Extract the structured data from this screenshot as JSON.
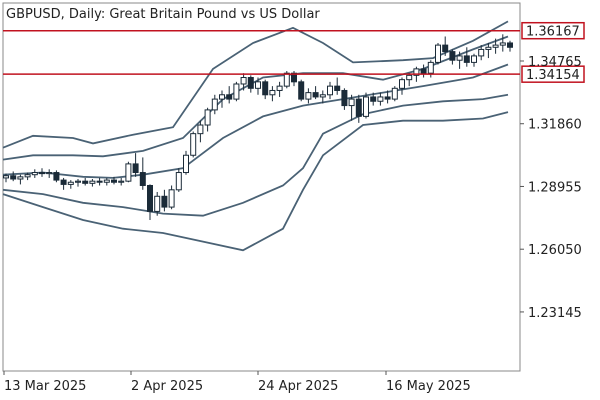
{
  "chart_data": {
    "type": "candlestick",
    "title": "GBPUSD, Daily:  Great Britain Pound vs US Dollar",
    "y_range": [
      1.2041,
      1.3745
    ],
    "y_ticks": [
      1.3186,
      1.28955,
      1.2605,
      1.23145,
      1.34765
    ],
    "y_tick_labels": [
      "1.31860",
      "1.28955",
      "1.26050",
      "1.23145",
      "1.34765"
    ],
    "x_tick_labels": [
      "13 Mar 2025",
      "2 Apr 2025",
      "24 Apr 2025",
      "16 May 2025"
    ],
    "grid": false,
    "horizontal_lines": [
      {
        "label": "1.36167",
        "value": 1.36167,
        "color": "#c1121f"
      },
      {
        "label": "1.34154",
        "value": 1.34154,
        "color": "#c1121f"
      }
    ],
    "candles_ohlc": [
      [
        1.2935,
        1.2955,
        1.2915,
        1.2945
      ],
      [
        1.2945,
        1.2965,
        1.292,
        1.293
      ],
      [
        1.293,
        1.295,
        1.2905,
        1.294
      ],
      [
        1.294,
        1.296,
        1.2925,
        1.295
      ],
      [
        1.295,
        1.2975,
        1.2935,
        1.296
      ],
      [
        1.296,
        1.298,
        1.294,
        1.2955
      ],
      [
        1.2955,
        1.2975,
        1.2935,
        1.296
      ],
      [
        1.296,
        1.297,
        1.2915,
        1.2925
      ],
      [
        1.2925,
        1.2935,
        1.288,
        1.2905
      ],
      [
        1.2905,
        1.2925,
        1.2885,
        1.2915
      ],
      [
        1.2915,
        1.293,
        1.2895,
        1.292
      ],
      [
        1.292,
        1.2935,
        1.29,
        1.291
      ],
      [
        1.291,
        1.293,
        1.2895,
        1.292
      ],
      [
        1.292,
        1.2935,
        1.29,
        1.2915
      ],
      [
        1.2915,
        1.2935,
        1.29,
        1.2925
      ],
      [
        1.2925,
        1.294,
        1.2905,
        1.2915
      ],
      [
        1.2915,
        1.2935,
        1.29,
        1.292
      ],
      [
        1.292,
        1.301,
        1.2915,
        1.3
      ],
      [
        1.3,
        1.305,
        1.294,
        1.296
      ],
      [
        1.296,
        1.303,
        1.288,
        1.29
      ],
      [
        1.29,
        1.2905,
        1.274,
        1.278
      ],
      [
        1.278,
        1.287,
        1.276,
        1.285
      ],
      [
        1.285,
        1.288,
        1.278,
        1.28
      ],
      [
        1.28,
        1.29,
        1.279,
        1.288
      ],
      [
        1.288,
        1.298,
        1.287,
        1.296
      ],
      [
        1.296,
        1.306,
        1.295,
        1.304
      ],
      [
        1.304,
        1.315,
        1.303,
        1.314
      ],
      [
        1.314,
        1.32,
        1.31,
        1.318
      ],
      [
        1.318,
        1.326,
        1.315,
        1.325
      ],
      [
        1.325,
        1.332,
        1.323,
        1.33
      ],
      [
        1.33,
        1.334,
        1.326,
        1.332
      ],
      [
        1.332,
        1.336,
        1.328,
        1.33
      ],
      [
        1.33,
        1.338,
        1.329,
        1.337
      ],
      [
        1.337,
        1.342,
        1.334,
        1.34
      ],
      [
        1.34,
        1.341,
        1.333,
        1.335
      ],
      [
        1.335,
        1.34,
        1.332,
        1.338
      ],
      [
        1.338,
        1.339,
        1.33,
        1.332
      ],
      [
        1.332,
        1.336,
        1.329,
        1.334
      ],
      [
        1.334,
        1.338,
        1.331,
        1.336
      ],
      [
        1.336,
        1.343,
        1.335,
        1.342
      ],
      [
        1.342,
        1.343,
        1.336,
        1.338
      ],
      [
        1.338,
        1.339,
        1.329,
        1.33
      ],
      [
        1.33,
        1.335,
        1.328,
        1.333
      ],
      [
        1.333,
        1.336,
        1.33,
        1.331
      ],
      [
        1.331,
        1.334,
        1.328,
        1.332
      ],
      [
        1.332,
        1.338,
        1.33,
        1.336
      ],
      [
        1.336,
        1.34,
        1.332,
        1.334
      ],
      [
        1.334,
        1.335,
        1.325,
        1.327
      ],
      [
        1.327,
        1.332,
        1.32,
        1.33
      ],
      [
        1.33,
        1.332,
        1.319,
        1.322
      ],
      [
        1.322,
        1.333,
        1.321,
        1.331
      ],
      [
        1.331,
        1.333,
        1.327,
        1.329
      ],
      [
        1.329,
        1.333,
        1.327,
        1.331
      ],
      [
        1.331,
        1.334,
        1.328,
        1.33
      ],
      [
        1.33,
        1.336,
        1.329,
        1.335
      ],
      [
        1.335,
        1.34,
        1.332,
        1.339
      ],
      [
        1.339,
        1.342,
        1.336,
        1.341
      ],
      [
        1.341,
        1.345,
        1.338,
        1.344
      ],
      [
        1.344,
        1.346,
        1.34,
        1.342
      ],
      [
        1.342,
        1.348,
        1.34,
        1.347
      ],
      [
        1.347,
        1.356,
        1.346,
        1.355
      ],
      [
        1.355,
        1.359,
        1.35,
        1.352
      ],
      [
        1.352,
        1.353,
        1.346,
        1.348
      ],
      [
        1.348,
        1.352,
        1.344,
        1.35
      ],
      [
        1.35,
        1.354,
        1.345,
        1.347
      ],
      [
        1.347,
        1.351,
        1.345,
        1.35
      ],
      [
        1.35,
        1.355,
        1.348,
        1.353
      ],
      [
        1.353,
        1.356,
        1.349,
        1.354
      ],
      [
        1.354,
        1.358,
        1.351,
        1.355
      ],
      [
        1.355,
        1.36,
        1.352,
        1.356
      ],
      [
        1.356,
        1.357,
        1.352,
        1.354
      ]
    ],
    "bands_outer_upper": [
      [
        0,
        1.3075
      ],
      [
        30,
        1.313
      ],
      [
        70,
        1.312
      ],
      [
        90,
        1.3095
      ],
      [
        130,
        1.3135
      ],
      [
        170,
        1.317
      ],
      [
        210,
        1.344
      ],
      [
        250,
        1.356
      ],
      [
        290,
        1.363
      ],
      [
        320,
        1.356
      ],
      [
        350,
        1.347
      ],
      [
        400,
        1.348
      ],
      [
        430,
        1.349
      ],
      [
        470,
        1.357
      ],
      [
        505,
        1.366
      ]
    ],
    "bands_inner_upper": [
      [
        0,
        1.302
      ],
      [
        30,
        1.304
      ],
      [
        70,
        1.304
      ],
      [
        100,
        1.3035
      ],
      [
        140,
        1.306
      ],
      [
        180,
        1.312
      ],
      [
        220,
        1.33
      ],
      [
        260,
        1.34
      ],
      [
        300,
        1.342
      ],
      [
        340,
        1.342
      ],
      [
        380,
        1.339
      ],
      [
        420,
        1.344
      ],
      [
        470,
        1.353
      ],
      [
        505,
        1.359
      ]
    ],
    "bands_middle": [
      [
        0,
        1.295
      ],
      [
        40,
        1.296
      ],
      [
        80,
        1.294
      ],
      [
        110,
        1.2935
      ],
      [
        140,
        1.295
      ],
      [
        180,
        1.298
      ],
      [
        220,
        1.312
      ],
      [
        260,
        1.322
      ],
      [
        300,
        1.327
      ],
      [
        340,
        1.33
      ],
      [
        380,
        1.333
      ],
      [
        420,
        1.336
      ],
      [
        470,
        1.34
      ],
      [
        505,
        1.346
      ]
    ],
    "bands_inner_lower": [
      [
        0,
        1.288
      ],
      [
        40,
        1.286
      ],
      [
        80,
        1.282
      ],
      [
        120,
        1.28
      ],
      [
        160,
        1.277
      ],
      [
        200,
        1.276
      ],
      [
        240,
        1.282
      ],
      [
        280,
        1.29
      ],
      [
        300,
        1.298
      ],
      [
        320,
        1.314
      ],
      [
        360,
        1.323
      ],
      [
        400,
        1.327
      ],
      [
        440,
        1.329
      ],
      [
        480,
        1.33
      ],
      [
        505,
        1.332
      ]
    ],
    "bands_outer_lower": [
      [
        0,
        1.286
      ],
      [
        40,
        1.28
      ],
      [
        80,
        1.274
      ],
      [
        120,
        1.27
      ],
      [
        160,
        1.268
      ],
      [
        200,
        1.264
      ],
      [
        240,
        1.26
      ],
      [
        280,
        1.27
      ],
      [
        300,
        1.288
      ],
      [
        320,
        1.304
      ],
      [
        360,
        1.318
      ],
      [
        400,
        1.32
      ],
      [
        440,
        1.32
      ],
      [
        480,
        1.321
      ],
      [
        505,
        1.324
      ]
    ]
  }
}
